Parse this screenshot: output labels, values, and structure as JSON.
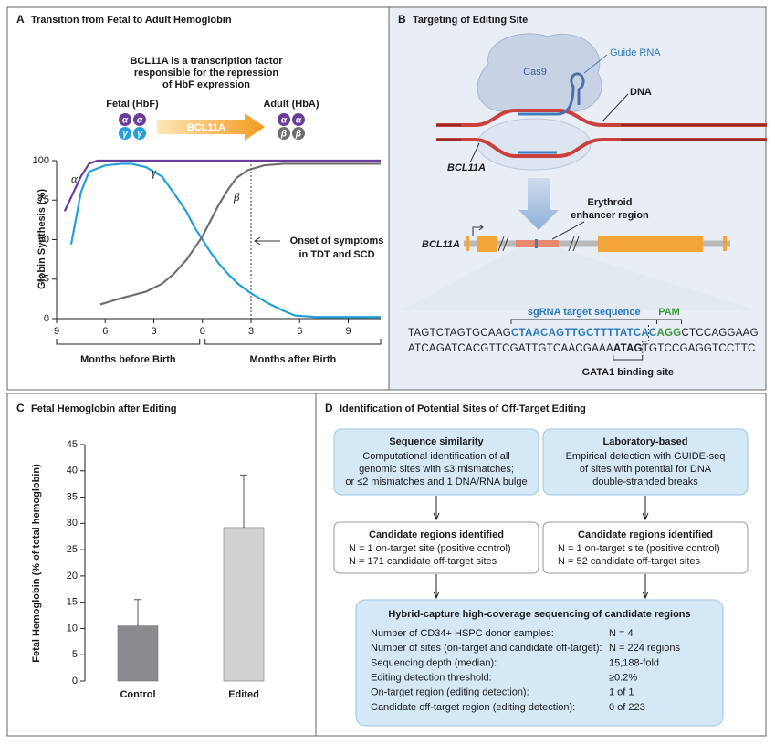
{
  "chart_data": [
    {
      "type": "line",
      "panel": "A",
      "title": "Transition from Fetal to Adult Hemoglobin",
      "caption": [
        "BCL11A is a transcription factor",
        "responsible for the repression",
        "of HbF expression"
      ],
      "fetal_label": "Fetal (HbF)",
      "adult_label": "Adult (HbA)",
      "arrow_label": "BCL11A",
      "fetal_globins": [
        "α",
        "α",
        "γ",
        "γ"
      ],
      "adult_globins": [
        "α",
        "α",
        "β",
        "β"
      ],
      "ylabel": "Globin Synthesis (%)",
      "xlim": [
        -9,
        11
      ],
      "ylim": [
        0,
        100
      ],
      "xticks": [
        {
          "value": -9,
          "label": "9"
        },
        {
          "value": -6,
          "label": "6"
        },
        {
          "value": -3,
          "label": "3"
        },
        0,
        3,
        6,
        9
      ],
      "yticks": [
        0,
        25,
        50,
        75,
        100
      ],
      "series": [
        {
          "name": "α",
          "color": "#6a3d9a",
          "x": [
            -8.5,
            -8,
            -7.5,
            -7,
            -6.5,
            -6,
            0,
            11
          ],
          "values": [
            68,
            79,
            90,
            98,
            100,
            100,
            100,
            100
          ]
        },
        {
          "name": "γ",
          "color": "#23a0d8",
          "x": [
            -8.1,
            -7.5,
            -7,
            -6,
            -5,
            -4.4,
            -3.5,
            -2.5,
            -1.8,
            -1,
            -0.5,
            0,
            0.5,
            1,
            1.6,
            2.2,
            3,
            4,
            5,
            5.7,
            7,
            11
          ],
          "values": [
            47,
            80,
            93,
            97,
            98,
            98,
            96,
            90,
            80,
            68,
            58,
            50,
            42,
            35,
            28,
            22,
            16,
            10,
            5,
            2,
            1,
            1
          ]
        },
        {
          "name": "β",
          "color": "#6f6f6f",
          "x": [
            -6.3,
            -5,
            -3.5,
            -2.5,
            -1.8,
            -1,
            -0.4,
            0,
            0.5,
            1,
            1.6,
            2.1,
            2.8,
            3.8,
            5,
            6.1,
            11
          ],
          "values": [
            9,
            13,
            17,
            22,
            28,
            37,
            46,
            52,
            62,
            72,
            82,
            89,
            94,
            97,
            98,
            98,
            98
          ]
        }
      ],
      "vline": {
        "x": 3,
        "label": [
          "Onset of symptoms",
          "in TDT and SCD"
        ]
      },
      "x_groups": [
        "Months before Birth",
        "Months after Birth"
      ]
    },
    {
      "type": "bar",
      "panel": "C",
      "title": "Fetal Hemoglobin after Editing",
      "ylabel": "Fetal Hemoglobin (% of total hemoglobin)",
      "categories": [
        "Control",
        "Edited"
      ],
      "values": [
        10.5,
        29.2
      ],
      "errors": [
        5,
        10
      ],
      "colors": [
        "#8b8b8f",
        "#d1d1d3"
      ],
      "ylim": [
        0,
        45
      ],
      "yticks": [
        0,
        5,
        10,
        15,
        20,
        25,
        30,
        35,
        40,
        45
      ]
    }
  ],
  "panel_b": {
    "label": "B",
    "title": "Targeting of Editing Site",
    "guide_rna": "Guide RNA",
    "cas9": "Cas9",
    "dna": "DNA",
    "locus": "BCL11A",
    "enhancer": [
      "Erythroid",
      "enhancer region"
    ],
    "gene": "BCL11A",
    "sgrna_label": "sgRNA target sequence",
    "pam_label": "PAM",
    "top_strand": [
      "TAGTCTAGTGCAAG",
      "CTAACAGTTGCTTTTATCAC",
      "AGG",
      "CTCCAGGAAG"
    ],
    "bottom_strand": [
      "ATCAGATCACGTTCGATTGTCAACGAAA",
      "ATAG",
      "TGTCCGAGGTCCTTC"
    ],
    "gata1_label": "GATA1 binding site"
  },
  "panel_d": {
    "label": "D",
    "title": "Identification of Potential Sites of Off-Target Editing",
    "approaches": [
      {
        "title": "Sequence similarity",
        "lines": [
          "Computational identification of all",
          "genomic sites with ≤3 mismatches;",
          "or ≤2 mismatches and 1 DNA/RNA bulge"
        ]
      },
      {
        "title": "Laboratory-based",
        "lines": [
          "Empirical detection with GUIDE-seq",
          "of sites with potential for DNA",
          "double-stranded breaks"
        ]
      }
    ],
    "candidates": [
      {
        "title": "Candidate regions identified",
        "lines": [
          "N = 1 on-target site (positive control)",
          "N = 171 candidate off-target sites"
        ]
      },
      {
        "title": "Candidate regions identified",
        "lines": [
          "N = 1 on-target site (positive control)",
          "N = 52 candidate off-target sites"
        ]
      }
    ],
    "sequencing": {
      "title": "Hybrid-capture high-coverage sequencing of candidate regions",
      "rows": [
        [
          "Number of CD34+ HSPC donor samples:",
          "N = 4"
        ],
        [
          "Number of sites (on-target and candidate off-target):",
          "N = 224 regions"
        ],
        [
          "Sequencing depth (median):",
          "15,188-fold"
        ],
        [
          "Editing detection threshold:",
          "≥0.2%"
        ],
        [
          "On-target region (editing detection):",
          "1 of 1"
        ],
        [
          "Candidate off-target region (editing detection):",
          "0 of 223"
        ]
      ]
    }
  }
}
